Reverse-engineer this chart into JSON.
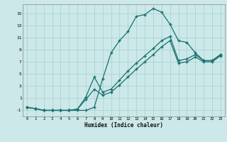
{
  "xlabel": "Humidex (Indice chaleur)",
  "background_color": "#cce8e8",
  "grid_color": "#aad4d4",
  "line_color": "#1a7070",
  "xlim": [
    -0.5,
    23.5
  ],
  "ylim": [
    -2.0,
    16.5
  ],
  "yticks": [
    -1,
    1,
    3,
    5,
    7,
    9,
    11,
    13,
    15
  ],
  "xticks": [
    0,
    1,
    2,
    3,
    4,
    5,
    6,
    7,
    8,
    9,
    10,
    11,
    12,
    13,
    14,
    15,
    16,
    17,
    18,
    19,
    20,
    21,
    22,
    23
  ],
  "line1_x": [
    0,
    1,
    2,
    3,
    4,
    5,
    6,
    7,
    8,
    9,
    10,
    11,
    12,
    13,
    14,
    15,
    16,
    17,
    18,
    19,
    20,
    21,
    22,
    23
  ],
  "line1_y": [
    -0.5,
    -0.7,
    -1.0,
    -1.0,
    -1.0,
    -1.0,
    -1.0,
    -1.0,
    -0.5,
    4.2,
    8.5,
    10.5,
    12.0,
    14.5,
    14.8,
    15.8,
    15.2,
    13.2,
    10.5,
    10.2,
    8.5,
    7.2,
    7.2,
    8.2
  ],
  "line2_x": [
    0,
    1,
    2,
    3,
    4,
    5,
    6,
    7,
    8,
    9,
    10,
    11,
    12,
    13,
    14,
    15,
    16,
    17,
    18,
    19,
    20,
    21,
    22,
    23
  ],
  "line2_y": [
    -0.5,
    -0.7,
    -1.0,
    -1.0,
    -1.0,
    -1.0,
    -0.8,
    1.2,
    4.5,
    2.0,
    2.5,
    4.0,
    5.5,
    6.8,
    8.0,
    9.2,
    10.5,
    11.2,
    7.2,
    7.5,
    8.2,
    7.2,
    7.2,
    8.2
  ],
  "line3_x": [
    0,
    1,
    2,
    3,
    4,
    5,
    6,
    7,
    8,
    9,
    10,
    11,
    12,
    13,
    14,
    15,
    16,
    17,
    18,
    19,
    20,
    21,
    22,
    23
  ],
  "line3_y": [
    -0.5,
    -0.7,
    -1.0,
    -1.0,
    -1.0,
    -1.0,
    -0.8,
    0.8,
    2.5,
    1.5,
    2.0,
    3.2,
    4.5,
    5.8,
    7.0,
    8.2,
    9.5,
    10.5,
    6.8,
    7.0,
    7.8,
    7.0,
    7.0,
    8.0
  ]
}
